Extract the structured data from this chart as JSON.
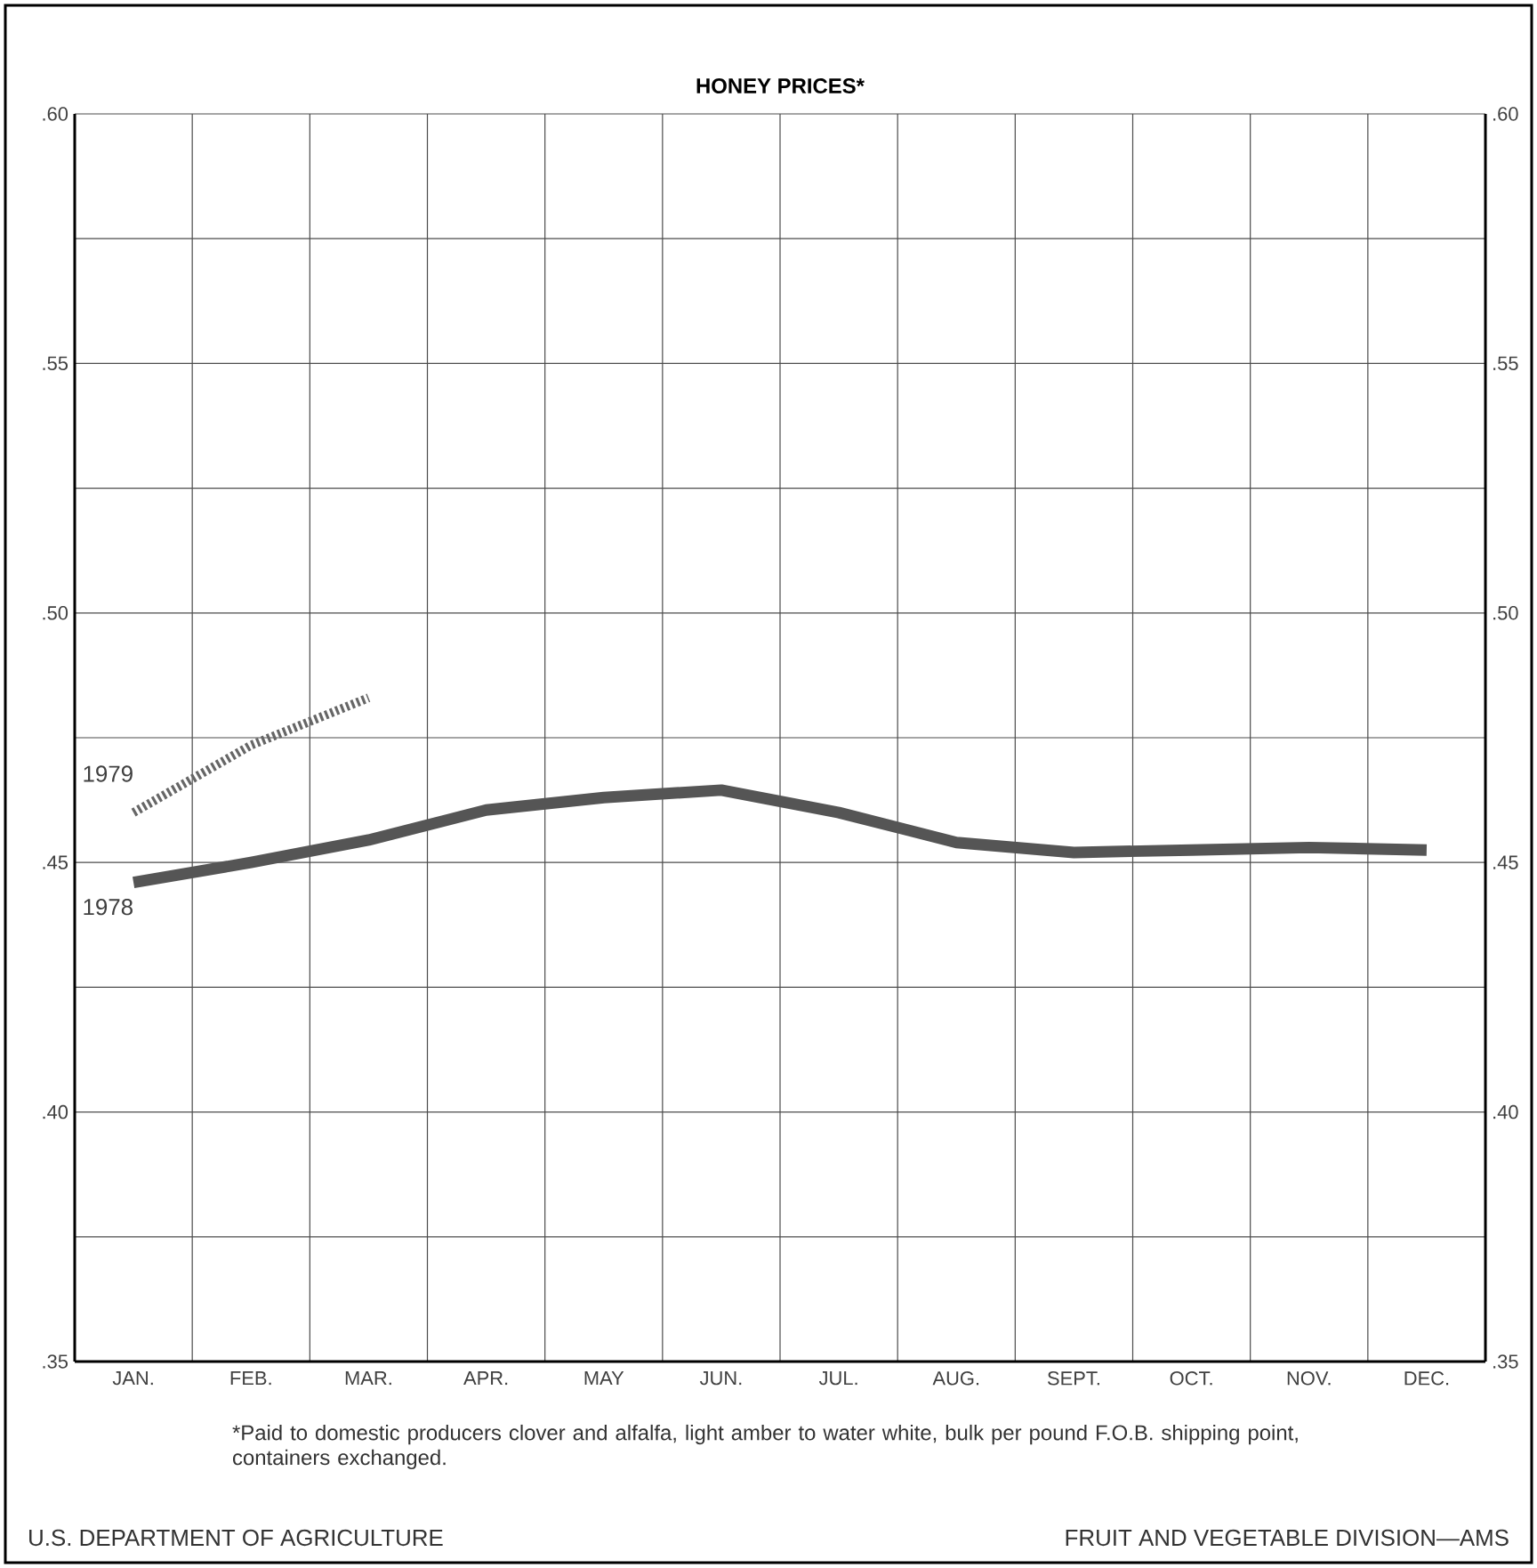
{
  "chart_data": {
    "type": "line",
    "title": "HONEY PRICES*",
    "categories": [
      "JAN.",
      "FEB.",
      "MAR.",
      "APR.",
      "MAY",
      "JUN.",
      "JUL.",
      "AUG.",
      "SEPT.",
      "OCT.",
      "NOV.",
      "DEC."
    ],
    "ylim": [
      0.35,
      0.6
    ],
    "yticks": [
      {
        "value": 0.35,
        "label": ".35"
      },
      {
        "value": 0.375,
        "label": null
      },
      {
        "value": 0.4,
        "label": ".40"
      },
      {
        "value": 0.425,
        "label": null
      },
      {
        "value": 0.45,
        "label": ".45"
      },
      {
        "value": 0.475,
        "label": null
      },
      {
        "value": 0.5,
        "label": ".50"
      },
      {
        "value": 0.525,
        "label": null
      },
      {
        "value": 0.55,
        "label": ".55"
      },
      {
        "value": 0.575,
        "label": null
      },
      {
        "value": 0.6,
        "label": ".60"
      }
    ],
    "y2lim": [
      0.35,
      0.6
    ],
    "y2ticks": [
      {
        "value": 0.35,
        "label": ".35"
      },
      {
        "value": 0.4,
        "label": ".40"
      },
      {
        "value": 0.45,
        "label": ".45"
      },
      {
        "value": 0.5,
        "label": ".50"
      },
      {
        "value": 0.55,
        "label": ".55"
      },
      {
        "value": 0.6,
        "label": ".60"
      }
    ],
    "grid": true,
    "series": [
      {
        "name": "1978",
        "color": "#555555",
        "line_style": "solid",
        "values": [
          0.446,
          0.45,
          0.4545,
          0.4605,
          0.463,
          0.4645,
          0.46,
          0.454,
          0.452,
          0.4525,
          0.453,
          0.4525
        ]
      },
      {
        "name": "1979",
        "color": "#666666",
        "line_style": "dotted",
        "values": [
          0.46,
          0.4735,
          0.483,
          null,
          null,
          null,
          null,
          null,
          null,
          null,
          null,
          null
        ]
      }
    ],
    "annotations": [
      "*Paid to domestic producers clover and alfalfa, light amber to water white, bulk per pound F.O.B. shipping point, containers exchanged.",
      "U.S. DEPARTMENT OF AGRICULTURE",
      "FRUIT AND VEGETABLE DIVISION—AMS"
    ]
  }
}
